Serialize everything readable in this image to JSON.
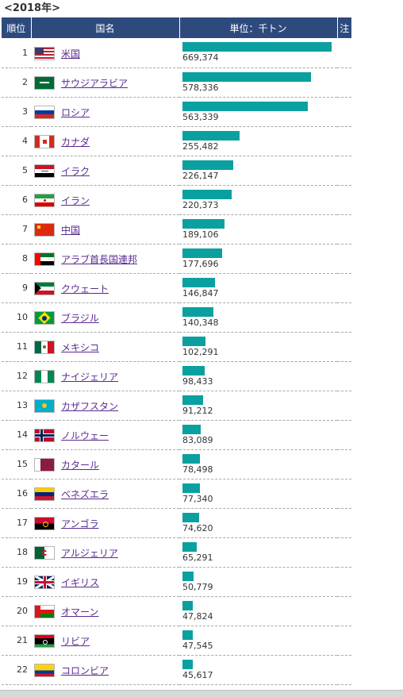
{
  "page": {
    "year_label": "<2018年>"
  },
  "table": {
    "headers": {
      "rank": "順位",
      "country": "国名",
      "unit": "単位：千トン",
      "note": "注"
    }
  },
  "chart_data": {
    "type": "bar",
    "title": "<2018年>",
    "unit": "単位：千トン",
    "bar_color": "#0aa0a0",
    "xlim": [
      0,
      669374
    ],
    "rows": [
      {
        "rank": "1",
        "country": "米国",
        "value": 669374,
        "label": "669,374",
        "flag": "flag-us-icon"
      },
      {
        "rank": "2",
        "country": "サウジアラビア",
        "value": 578336,
        "label": "578,336",
        "flag": "flag-sa-icon"
      },
      {
        "rank": "3",
        "country": "ロシア",
        "value": 563339,
        "label": "563,339",
        "flag": "flag-ru-icon"
      },
      {
        "rank": "4",
        "country": "カナダ",
        "value": 255482,
        "label": "255,482",
        "flag": "flag-ca-icon"
      },
      {
        "rank": "5",
        "country": "イラク",
        "value": 226147,
        "label": "226,147",
        "flag": "flag-iq-icon"
      },
      {
        "rank": "6",
        "country": "イラン",
        "value": 220373,
        "label": "220,373",
        "flag": "flag-ir-icon"
      },
      {
        "rank": "7",
        "country": "中国",
        "value": 189106,
        "label": "189,106",
        "flag": "flag-cn-icon"
      },
      {
        "rank": "8",
        "country": "アラブ首長国連邦",
        "value": 177696,
        "label": "177,696",
        "flag": "flag-ae-icon"
      },
      {
        "rank": "9",
        "country": "クウェート",
        "value": 146847,
        "label": "146,847",
        "flag": "flag-kw-icon"
      },
      {
        "rank": "10",
        "country": "ブラジル",
        "value": 140348,
        "label": "140,348",
        "flag": "flag-br-icon"
      },
      {
        "rank": "11",
        "country": "メキシコ",
        "value": 102291,
        "label": "102,291",
        "flag": "flag-mx-icon"
      },
      {
        "rank": "12",
        "country": "ナイジェリア",
        "value": 98433,
        "label": "98,433",
        "flag": "flag-ng-icon"
      },
      {
        "rank": "13",
        "country": "カザフスタン",
        "value": 91212,
        "label": "91,212",
        "flag": "flag-kz-icon"
      },
      {
        "rank": "14",
        "country": "ノルウェー",
        "value": 83089,
        "label": "83,089",
        "flag": "flag-no-icon"
      },
      {
        "rank": "15",
        "country": "カタール",
        "value": 78498,
        "label": "78,498",
        "flag": "flag-qa-icon"
      },
      {
        "rank": "16",
        "country": "ベネズエラ",
        "value": 77340,
        "label": "77,340",
        "flag": "flag-ve-icon"
      },
      {
        "rank": "17",
        "country": "アンゴラ",
        "value": 74620,
        "label": "74,620",
        "flag": "flag-ao-icon"
      },
      {
        "rank": "18",
        "country": "アルジェリア",
        "value": 65291,
        "label": "65,291",
        "flag": "flag-dz-icon"
      },
      {
        "rank": "19",
        "country": "イギリス",
        "value": 50779,
        "label": "50,779",
        "flag": "flag-gb-icon"
      },
      {
        "rank": "20",
        "country": "オマーン",
        "value": 47824,
        "label": "47,824",
        "flag": "flag-om-icon"
      },
      {
        "rank": "21",
        "country": "リビア",
        "value": 47545,
        "label": "47,545",
        "flag": "flag-ly-icon"
      },
      {
        "rank": "22",
        "country": "コロンビア",
        "value": 45617,
        "label": "45,617",
        "flag": "flag-co-icon"
      }
    ]
  }
}
